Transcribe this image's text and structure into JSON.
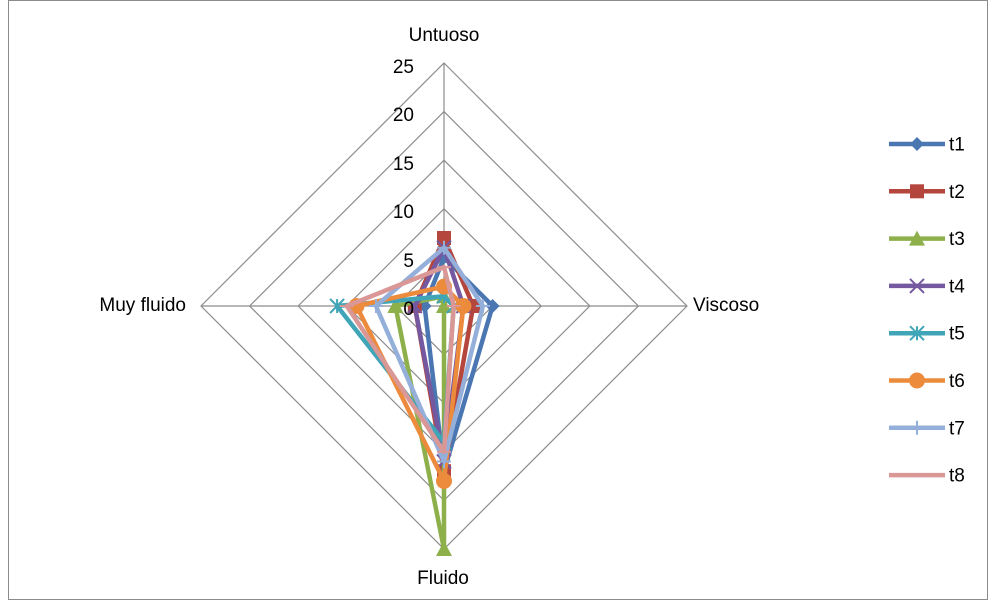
{
  "chart_data": {
    "type": "radar",
    "categories": [
      "Untuoso",
      "Viscoso",
      "Fluido",
      "Muy fluido"
    ],
    "rlim": [
      0,
      25
    ],
    "ticks": [
      "0",
      "5",
      "10",
      "15",
      "20",
      "25"
    ],
    "grid": true,
    "legend_position": "right",
    "series": [
      {
        "name": "t1",
        "color": "#4a76b2",
        "marker": "diamond",
        "values": [
          5,
          5,
          17,
          2
        ]
      },
      {
        "name": "t2",
        "color": "#b5463d",
        "marker": "square",
        "values": [
          7,
          3,
          17,
          3
        ]
      },
      {
        "name": "t3",
        "color": "#8db04b",
        "marker": "triangle",
        "values": [
          1,
          0,
          25,
          5
        ]
      },
      {
        "name": "t4",
        "color": "#7458a0",
        "marker": "x",
        "values": [
          6,
          2,
          16,
          3
        ]
      },
      {
        "name": "t5",
        "color": "#41a5b8",
        "marker": "star",
        "values": [
          1,
          1,
          14,
          11
        ]
      },
      {
        "name": "t6",
        "color": "#ec8b3c",
        "marker": "circle",
        "values": [
          2,
          2,
          18,
          9
        ]
      },
      {
        "name": "t7",
        "color": "#94afd9",
        "marker": "plus",
        "values": [
          6,
          4,
          16,
          7
        ]
      },
      {
        "name": "t8",
        "color": "#d99796",
        "marker": "dash",
        "values": [
          4,
          1,
          15,
          10
        ]
      }
    ]
  }
}
